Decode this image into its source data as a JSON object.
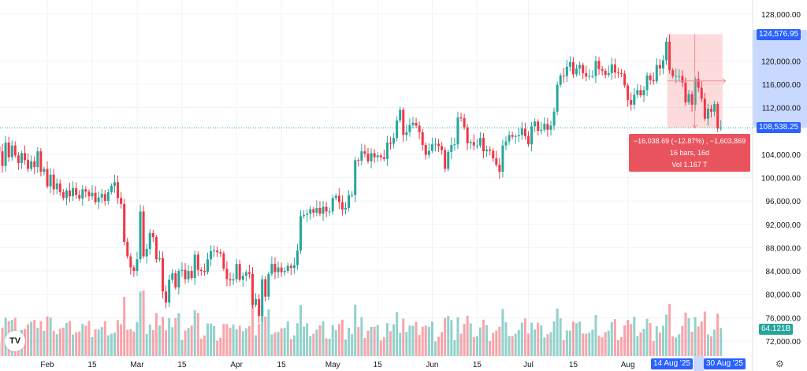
{
  "chart_data": {
    "type": "candlestick",
    "title": "",
    "start_date": "2025-01-17",
    "unit_note": "closes in thousands USD",
    "closes_k": [
      104.5,
      102.0,
      106.0,
      103.5,
      105.5,
      103.8,
      102.5,
      104.2,
      103.0,
      101.5,
      102.8,
      101.8,
      104.5,
      101.0,
      101.5,
      98.5,
      100.5,
      98.0,
      99.0,
      97.5,
      96.5,
      97.8,
      96.8,
      98.2,
      97.0,
      96.4,
      98.0,
      97.6,
      96.8,
      97.4,
      95.8,
      96.6,
      97.2,
      96.0,
      97.5,
      98.6,
      99.2,
      96.5,
      95.5,
      89.0,
      86.5,
      84.6,
      84.0,
      86.0,
      94.2,
      86.5,
      87.8,
      90.5,
      89.8,
      86.0,
      86.2,
      80.5,
      78.6,
      82.5,
      83.6,
      81.2,
      84.0,
      84.2,
      82.6,
      84.0,
      82.8,
      86.8,
      84.2,
      84.0,
      83.8,
      86.0,
      87.4,
      87.5,
      87.2,
      87.0,
      84.4,
      82.6,
      82.4,
      82.6,
      85.2,
      82.5,
      83.2,
      83.8,
      83.5,
      78.2,
      79.2,
      76.3,
      82.6,
      79.6,
      83.5,
      85.2,
      83.8,
      84.6,
      83.8,
      84.0,
      84.9,
      84.5,
      85.0,
      87.5,
      93.4,
      93.6,
      93.8,
      94.6,
      94.0,
      94.8,
      93.8,
      95.0,
      94.2,
      94.2,
      96.5,
      96.9,
      95.8,
      94.5,
      94.8,
      97.0,
      97.0,
      103.0,
      102.9,
      104.5,
      104.1,
      102.8,
      104.2,
      103.5,
      103.8,
      103.5,
      103.2,
      106.0,
      105.8,
      106.8,
      109.8,
      111.6,
      107.3,
      107.8,
      109.0,
      109.4,
      108.9,
      107.8,
      105.6,
      103.9,
      104.6,
      105.7,
      105.8,
      105.4,
      104.7,
      101.5,
      104.4,
      105.6,
      105.7,
      110.3,
      110.2,
      108.6,
      105.9,
      106.1,
      105.5,
      105.5,
      106.8,
      104.5,
      104.8,
      104.6,
      103.3,
      102.2,
      101.0,
      105.5,
      106.2,
      107.3,
      107.0,
      107.1,
      107.3,
      108.4,
      107.1,
      105.7,
      108.8,
      109.6,
      108.0,
      108.2,
      109.2,
      108.2,
      108.9,
      111.3,
      115.9,
      117.5,
      117.4,
      119.0,
      119.8,
      117.7,
      118.7,
      119.3,
      117.9,
      117.3,
      117.4,
      117.4,
      120.0,
      118.6,
      118.3,
      117.6,
      117.9,
      119.4,
      118.0,
      117.9,
      117.8,
      115.8,
      113.3,
      112.5,
      114.2,
      115.0,
      114.1,
      115.0,
      117.5,
      116.7,
      116.5,
      119.3,
      118.7,
      120.1,
      123.3,
      118.4,
      117.4,
      117.4,
      117.4,
      116.3,
      112.9,
      114.3,
      112.5,
      116.9,
      115.4,
      113.5,
      110.1,
      111.8,
      111.3,
      112.6,
      108.4,
      108.54
    ],
    "high_overrides_k": {
      "209": 124.58
    },
    "ylim": [
      70000,
      130000
    ],
    "y_ticks": [
      "128,000.00",
      "120,000.00",
      "116,000.00",
      "112,000.00",
      "104,000.00",
      "100,000.00",
      "96,000.00",
      "92,000.00",
      "88,000.00",
      "84,000.00",
      "80,000.00",
      "76,000.00",
      "72,000.00"
    ],
    "y_tick_values": [
      128000,
      120000,
      116000,
      112000,
      104000,
      100000,
      96000,
      92000,
      88000,
      84000,
      80000,
      76000,
      72000
    ],
    "x_ticks": [
      {
        "label": "Feb",
        "index": 15
      },
      {
        "label": "15",
        "index": 29
      },
      {
        "label": "Mar",
        "index": 43
      },
      {
        "label": "15",
        "index": 57
      },
      {
        "label": "Apr",
        "index": 74
      },
      {
        "label": "15",
        "index": 88
      },
      {
        "label": "May",
        "index": 104
      },
      {
        "label": "15",
        "index": 118
      },
      {
        "label": "Jun",
        "index": 135
      },
      {
        "label": "15",
        "index": 149
      },
      {
        "label": "Jul",
        "index": 165
      },
      {
        "label": "15",
        "index": 179
      },
      {
        "label": "Aug",
        "index": 196
      }
    ],
    "last_price_label": "108,538.25",
    "last_price": 108538.25,
    "high_price_label": "124,576.95",
    "high_price": 124576.95,
    "volume_label": "64.121B",
    "colors": {
      "up": "#26a69a",
      "down": "#f23645",
      "accent": "#2962ff"
    }
  },
  "measurement": {
    "from_index": 209,
    "to_index": 225,
    "line1": "−16,038.69 (−12.87%) , −1,603,869",
    "line2": "16 bars, 16d",
    "line3": "Vol 1.167 T",
    "start_date_label": "14 Aug '25",
    "end_date_label": "30 Aug '25"
  },
  "logo": "TV"
}
